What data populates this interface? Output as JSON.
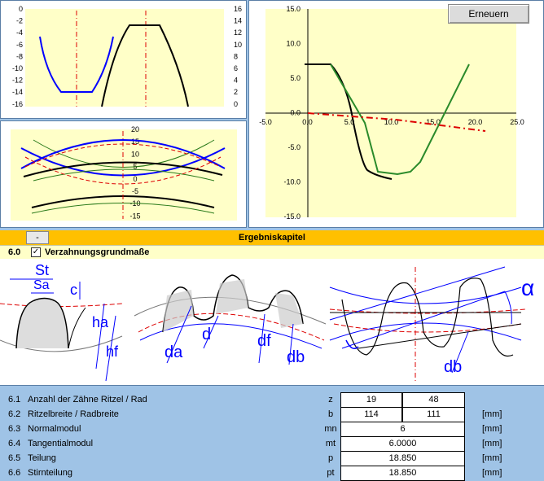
{
  "buttons": {
    "refresh": "Erneuern"
  },
  "chart1": {
    "left_ticks": [
      "0",
      "-2",
      "-4",
      "-6",
      "-8",
      "-10",
      "-12",
      "-14",
      "-16"
    ],
    "right_ticks": [
      "16",
      "14",
      "12",
      "10",
      "8",
      "6",
      "4",
      "2",
      "0"
    ]
  },
  "chart2": {
    "ticks": [
      "20",
      "15",
      "10",
      "5",
      "0",
      "-5",
      "-10",
      "-15"
    ]
  },
  "chart3": {
    "y_ticks": [
      "15.0",
      "10.0",
      "5.0",
      "0.0",
      "-5.0",
      "-10.0",
      "-15.0"
    ],
    "x_ticks": [
      "-5.0",
      "0.0",
      "5.0",
      "10.0",
      "15.0",
      "20.0",
      "25.0"
    ]
  },
  "results_bar": {
    "toggle": "-",
    "title": "Ergebniskapitel"
  },
  "section": {
    "number": "6.0",
    "label": "Verzahnungsgrundmaße",
    "checked": "✓"
  },
  "drawing_labels": {
    "st": "St",
    "sa": "Sa",
    "c": "c",
    "ha": "ha",
    "hf": "hf",
    "da": "da",
    "d": "d",
    "df": "df",
    "db": "db",
    "db2": "db",
    "alpha": "α"
  },
  "rows": [
    {
      "num": "6.1",
      "label": "Anzahl der Zähne Ritzel / Rad",
      "sym": "z",
      "v1": "19",
      "v2": "48",
      "unit": ""
    },
    {
      "num": "6.2",
      "label": "Ritzelbreite / Radbreite",
      "sym": "b",
      "v1": "114",
      "v2": "111",
      "unit": "[mm]"
    },
    {
      "num": "6.3",
      "label": "Normalmodul",
      "sym": "mn",
      "v": "6",
      "unit": "[mm]"
    },
    {
      "num": "6.4",
      "label": "Tangentialmodul",
      "sym": "mt",
      "v": "6.0000",
      "unit": "[mm]"
    },
    {
      "num": "6.5",
      "label": "Teilung",
      "sym": "p",
      "v": "18.850",
      "unit": "[mm]"
    },
    {
      "num": "6.6",
      "label": "Stirnteilung",
      "sym": "pt",
      "v": "18.850",
      "unit": "[mm]"
    }
  ]
}
